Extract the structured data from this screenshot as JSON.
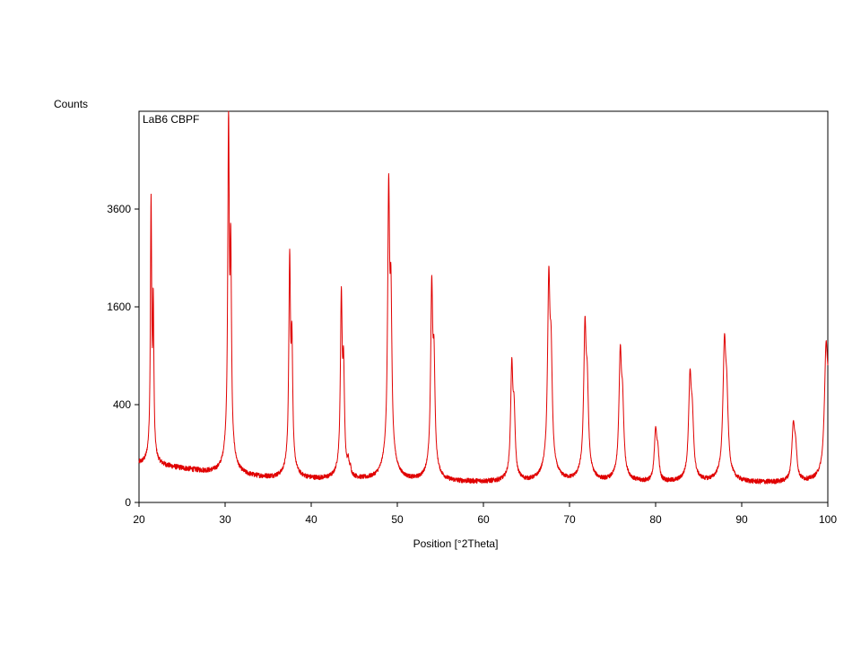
{
  "chart_data": {
    "type": "line",
    "title": "",
    "sample_label": "LaB6 CBPF",
    "ylabel": "Counts",
    "xlabel": "Position [°2Theta]",
    "y_scale": "sqrt",
    "xlim": [
      20,
      100
    ],
    "ylim": [
      0,
      6400
    ],
    "x_ticks": [
      20,
      30,
      40,
      50,
      60,
      70,
      80,
      90,
      100
    ],
    "y_ticks": [
      0,
      400,
      1600,
      3600
    ],
    "grid": false,
    "line_color": "#e00000",
    "series": [
      {
        "background": {
          "x": [
            20,
            22,
            25,
            28,
            30,
            33,
            36,
            40,
            45,
            50,
            55,
            60,
            65,
            70,
            75,
            80,
            85,
            90,
            95,
            100
          ],
          "y": [
            62,
            58,
            48,
            38,
            33,
            27,
            24,
            22,
            20,
            18,
            17,
            17,
            16,
            16,
            16,
            16,
            16,
            16,
            16,
            18
          ]
        },
        "peaks": {
          "x": [
            21.4,
            30.4,
            37.5,
            43.5,
            44.3,
            49.0,
            54.0,
            63.3,
            67.6,
            71.8,
            75.9,
            80.0,
            84.0,
            88.0,
            96.0,
            99.8
          ],
          "y": [
            3900,
            6400,
            2600,
            1870,
            60,
            4320,
            2050,
            820,
            2180,
            1340,
            960,
            220,
            680,
            1080,
            250,
            970
          ]
        }
      }
    ]
  }
}
